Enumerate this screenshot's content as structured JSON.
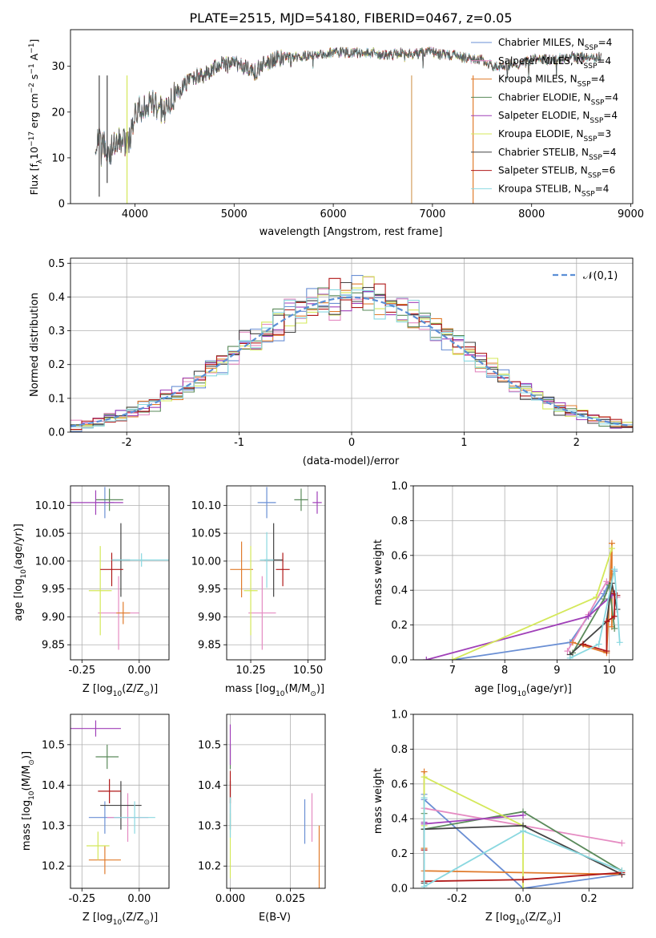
{
  "figure": {
    "title": "PLATE=2515, MJD=54180, FIBERID=0467, z=0.05"
  },
  "chart_data": [
    {
      "id": "spectrum",
      "type": "line",
      "title": "PLATE=2515, MJD=54180, FIBERID=0467, z=0.05",
      "xlabel": "wavelength [Angstrom, rest frame]",
      "ylabel_main": "Flux [f",
      "ylabel_sub": "λ",
      "ylabel_rest": "10",
      "ylabel_exp1": "−17",
      "ylabel_mid": " erg cm",
      "ylabel_exp2": "−2",
      "ylabel_mid2": " s",
      "ylabel_exp3": "−1",
      "ylabel_end": " A",
      "ylabel_exp4": "−1",
      "ylabel_close": "]",
      "xlim": [
        3350,
        9020
      ],
      "ylim": [
        0,
        38
      ],
      "xticks": [
        4000,
        5000,
        6000,
        7000,
        8000,
        9000
      ],
      "yticks": [
        0,
        10,
        20,
        30
      ],
      "legend_position": "right",
      "series": [
        {
          "name": "Chabrier MILES, N",
          "sub": "SSP",
          "count": "=4",
          "color": "#6a8fd4"
        },
        {
          "name": "Salpeter MILES, N",
          "sub": "SSP",
          "count": "=4",
          "color": "#e58bc2"
        },
        {
          "name": "Kroupa MILES, N",
          "sub": "SSP",
          "count": "=4",
          "color": "#e07b2c"
        },
        {
          "name": "Chabrier ELODIE, N",
          "sub": "SSP",
          "count": "=4",
          "color": "#5a8a5a"
        },
        {
          "name": "Salpeter ELODIE, N",
          "sub": "SSP",
          "count": "=4",
          "color": "#a040b8"
        },
        {
          "name": "Kroupa ELODIE, N",
          "sub": "SSP",
          "count": "=3",
          "color": "#d4e85a"
        },
        {
          "name": "Chabrier STELIB, N",
          "sub": "SSP",
          "count": "=4",
          "color": "#444444"
        },
        {
          "name": "Salpeter STELIB, N",
          "sub": "SSP",
          "count": "=6",
          "color": "#b01818"
        },
        {
          "name": "Kroupa STELIB, N",
          "sub": "SSP",
          "count": "=4",
          "color": "#8ad8e0"
        }
      ],
      "envelope": {
        "wavelength": [
          3600,
          3650,
          3700,
          3750,
          3800,
          3850,
          3900,
          3950,
          4000,
          4100,
          4200,
          4300,
          4400,
          4500,
          4600,
          4700,
          4800,
          4900,
          5000,
          5100,
          5200,
          5300,
          5400,
          5500,
          5600,
          5700,
          5800,
          5900,
          6000,
          6100,
          6200,
          6300,
          6400,
          6500,
          6600,
          6700,
          6800,
          6900,
          7000,
          7100,
          7200,
          7300,
          7400,
          7500,
          7600,
          7700,
          7800,
          7900,
          8000,
          8200,
          8400,
          8600,
          8700
        ],
        "flux": [
          12.5,
          14,
          12.5,
          11.5,
          13,
          13.5,
          13.5,
          14.5,
          20,
          21,
          22,
          19.5,
          24,
          26,
          27.5,
          28,
          29.5,
          30.5,
          30.5,
          30,
          28.5,
          30.5,
          31.5,
          32,
          32,
          32,
          32.5,
          32.5,
          33,
          33,
          33,
          33,
          33,
          32.5,
          32.5,
          33,
          32.5,
          33,
          33,
          32.5,
          32.5,
          32,
          31.5,
          31.5,
          30,
          30,
          30.5,
          30.5,
          31.5,
          31.5,
          32,
          32,
          32
        ]
      },
      "spikes": [
        {
          "x": 3920,
          "color": "#d4e85a",
          "ybottom": 0
        },
        {
          "x": 6790,
          "color": "#d4a060",
          "ybottom": 0
        },
        {
          "x": 7410,
          "color": "#e07b2c",
          "ybottom": 0
        },
        {
          "x": 3640,
          "color": "#444444",
          "ybottom": 1.5
        },
        {
          "x": 3720,
          "color": "#444444",
          "ybottom": 4.5
        }
      ]
    },
    {
      "id": "residuals",
      "type": "area",
      "xlabel": "(data-model)/error",
      "ylabel": "Normed distribution",
      "xlim": [
        -2.5,
        2.5
      ],
      "ylim": [
        0,
        0.515
      ],
      "xticks": [
        -2,
        -1,
        0,
        1,
        2
      ],
      "yticks": [
        0.0,
        0.1,
        0.2,
        0.3,
        0.4,
        0.5
      ],
      "grid": true,
      "legend_position": "top-right",
      "legend_label": "𝒩(0,1)",
      "normal_color": "#5b8fd6",
      "bin_width": 0.1,
      "bin_start": -2.5,
      "hist_colors": [
        "#6a8fd4",
        "#e58bc2",
        "#e07b2c",
        "#5a8a5a",
        "#a040b8",
        "#d4e85a",
        "#444444",
        "#b01818",
        "#8ad8e0"
      ]
    },
    {
      "id": "age-vs-Z",
      "type": "scatter",
      "xlabel": "Z [log",
      "xlabel_sub": "10",
      "xlabel_rest": "(Z/Z",
      "xlabel_sub2": "⊙",
      "xlabel_end": ")]",
      "ylabel": "age  [log",
      "ylabel_sub": "10",
      "ylabel_rest": "(age/yr)]",
      "xlim": [
        -0.3,
        0.13
      ],
      "ylim": [
        9.823,
        10.135
      ],
      "xticks": [
        -0.25,
        0.0
      ],
      "yticks": [
        9.85,
        9.9,
        9.95,
        10.0,
        10.05,
        10.1
      ],
      "points": [
        {
          "x": -0.15,
          "xerr": 0.04,
          "y": 10.105,
          "yerr": 0.028,
          "color": "#6a8fd4"
        },
        {
          "x": -0.09,
          "xerr": 0.09,
          "y": 9.907,
          "yerr": 0.066,
          "color": "#e58bc2"
        },
        {
          "x": -0.07,
          "xerr": 0.03,
          "y": 9.907,
          "yerr": 0.02,
          "color": "#e07b2c"
        },
        {
          "x": -0.13,
          "xerr": 0.06,
          "y": 10.11,
          "yerr": 0.02,
          "color": "#5a8a5a"
        },
        {
          "x": -0.19,
          "xerr": 0.12,
          "y": 10.105,
          "yerr": 0.022,
          "color": "#a040b8"
        },
        {
          "x": -0.17,
          "xerr": 0.05,
          "y": 9.947,
          "yerr": 0.08,
          "color": "#d4e85a"
        },
        {
          "x": -0.08,
          "xerr": 0.04,
          "y": 10.002,
          "yerr": 0.066,
          "color": "#444444"
        },
        {
          "x": -0.12,
          "xerr": 0.05,
          "y": 9.985,
          "yerr": 0.03,
          "color": "#b01818"
        },
        {
          "x": 0.01,
          "xerr": 0.13,
          "y": 10.002,
          "yerr": 0.012,
          "color": "#8ad8e0"
        }
      ]
    },
    {
      "id": "age-vs-mass",
      "type": "scatter",
      "xlabel": "mass [log",
      "xlabel_sub": "10",
      "xlabel_rest": "(M/M",
      "xlabel_sub2": "⊙",
      "xlabel_end": ")]",
      "xlim": [
        10.145,
        10.575
      ],
      "ylim": [
        9.823,
        10.135
      ],
      "xticks": [
        10.25,
        10.5
      ],
      "yticks": [
        9.85,
        9.9,
        9.95,
        10.0,
        10.05,
        10.1
      ],
      "points": [
        {
          "x": 10.32,
          "xerr": 0.04,
          "y": 10.105,
          "yerr": 0.028,
          "color": "#6a8fd4"
        },
        {
          "x": 10.3,
          "xerr": 0.06,
          "y": 9.907,
          "yerr": 0.066,
          "color": "#e58bc2"
        },
        {
          "x": 10.21,
          "xerr": 0.05,
          "y": 9.985,
          "yerr": 0.05,
          "color": "#e07b2c"
        },
        {
          "x": 10.47,
          "xerr": 0.03,
          "y": 10.11,
          "yerr": 0.02,
          "color": "#5a8a5a"
        },
        {
          "x": 10.54,
          "xerr": 0.02,
          "y": 10.105,
          "yerr": 0.02,
          "color": "#a040b8"
        },
        {
          "x": 10.25,
          "xerr": 0.03,
          "y": 9.947,
          "yerr": 0.08,
          "color": "#d4e85a"
        },
        {
          "x": 10.35,
          "xerr": 0.04,
          "y": 10.002,
          "yerr": 0.066,
          "color": "#444444"
        },
        {
          "x": 10.39,
          "xerr": 0.03,
          "y": 9.985,
          "yerr": 0.03,
          "color": "#b01818"
        },
        {
          "x": 10.32,
          "xerr": 0.03,
          "y": 10.002,
          "yerr": 0.05,
          "color": "#8ad8e0"
        }
      ]
    },
    {
      "id": "massweight-vs-age",
      "type": "line",
      "xlabel": "age  [log",
      "xlabel_sub": "10",
      "xlabel_rest": "(age/yr)]",
      "ylabel": "mass weight",
      "xlim": [
        6.25,
        10.45
      ],
      "ylim": [
        0,
        1.0
      ],
      "xticks": [
        7,
        8,
        9,
        10
      ],
      "yticks": [
        0.0,
        0.2,
        0.4,
        0.6,
        0.8,
        1.0
      ],
      "grid": true,
      "series": [
        {
          "color": "#6a8fd4",
          "x": [
            7.0,
            9.25,
            9.9,
            10.1
          ],
          "y": [
            0.0,
            0.1,
            0.38,
            0.51
          ]
        },
        {
          "color": "#e58bc2",
          "x": [
            9.2,
            9.6,
            9.95,
            10.15
          ],
          "y": [
            0.05,
            0.26,
            0.45,
            0.36
          ]
        },
        {
          "color": "#e07b2c",
          "x": [
            9.3,
            9.95,
            10.05,
            10.05
          ],
          "y": [
            0.1,
            0.04,
            0.67,
            0.19
          ]
        },
        {
          "color": "#5a8a5a",
          "x": [
            9.3,
            9.9,
            10.0,
            10.1
          ],
          "y": [
            0.04,
            0.35,
            0.43,
            0.18
          ]
        },
        {
          "color": "#a040b8",
          "x": [
            6.5,
            9.6,
            10.05,
            10.1
          ],
          "y": [
            0.0,
            0.25,
            0.37,
            0.38
          ]
        },
        {
          "color": "#d4e85a",
          "x": [
            7.0,
            9.75,
            10.05
          ],
          "y": [
            0.0,
            0.36,
            0.64
          ]
        },
        {
          "color": "#444444",
          "x": [
            9.25,
            9.95,
            10.05,
            10.15
          ],
          "y": [
            0.03,
            0.22,
            0.44,
            0.29
          ]
        },
        {
          "color": "#b01818",
          "x": [
            9.5,
            9.95,
            9.95,
            10.1,
            10.1,
            10.15
          ],
          "y": [
            0.09,
            0.05,
            0.22,
            0.25,
            0.38,
            0.37
          ]
        },
        {
          "color": "#8ad8e0",
          "x": [
            9.25,
            9.8,
            10.1,
            10.2
          ],
          "y": [
            0.01,
            0.09,
            0.52,
            0.1
          ]
        }
      ]
    },
    {
      "id": "mass-vs-Z",
      "type": "scatter",
      "xlabel": "Z [log",
      "xlabel_sub": "10",
      "xlabel_rest": "(Z/Z",
      "xlabel_sub2": "⊙",
      "xlabel_end": ")]",
      "ylabel": "mass [log",
      "ylabel_sub": "10",
      "ylabel_rest": "(M/M",
      "ylabel_sub2": "⊙",
      "ylabel_end": ")]",
      "xlim": [
        -0.3,
        0.13
      ],
      "ylim": [
        10.145,
        10.575
      ],
      "xticks": [
        -0.25,
        0.0
      ],
      "yticks": [
        10.2,
        10.3,
        10.4,
        10.5
      ],
      "points": [
        {
          "x": -0.15,
          "xerr": 0.07,
          "y": 10.32,
          "yerr": 0.04,
          "color": "#6a8fd4"
        },
        {
          "x": -0.05,
          "xerr": 0.09,
          "y": 10.32,
          "yerr": 0.06,
          "color": "#e58bc2"
        },
        {
          "x": -0.15,
          "xerr": 0.07,
          "y": 10.215,
          "yerr": 0.035,
          "color": "#e07b2c"
        },
        {
          "x": -0.14,
          "xerr": 0.05,
          "y": 10.47,
          "yerr": 0.03,
          "color": "#5a8a5a"
        },
        {
          "x": -0.19,
          "xerr": 0.11,
          "y": 10.54,
          "yerr": 0.02,
          "color": "#a040b8"
        },
        {
          "x": -0.18,
          "xerr": 0.05,
          "y": 10.25,
          "yerr": 0.035,
          "color": "#d4e85a"
        },
        {
          "x": -0.08,
          "xerr": 0.09,
          "y": 10.35,
          "yerr": 0.06,
          "color": "#444444"
        },
        {
          "x": -0.13,
          "xerr": 0.05,
          "y": 10.385,
          "yerr": 0.03,
          "color": "#b01818"
        },
        {
          "x": -0.02,
          "xerr": 0.09,
          "y": 10.32,
          "yerr": 0.04,
          "color": "#8ad8e0"
        }
      ]
    },
    {
      "id": "mass-vs-ebv",
      "type": "scatter",
      "xlabel": "E(B-V)",
      "xlim": [
        -0.0015,
        0.0395
      ],
      "ylim": [
        10.145,
        10.575
      ],
      "xticks": [
        0.0,
        0.025
      ],
      "xtick_labels": [
        "0.000",
        "0.025"
      ],
      "yticks": [
        10.2,
        10.3,
        10.4,
        10.5
      ],
      "points": [
        {
          "x": 0.031,
          "y": 10.31,
          "yerr": 0.055,
          "color": "#6a8fd4"
        },
        {
          "x": 0.034,
          "y": 10.32,
          "yerr": 0.06,
          "color": "#e58bc2"
        },
        {
          "x": 0.037,
          "y": 10.215,
          "yerr": 0.085,
          "color": "#e07b2c"
        },
        {
          "x": 0.0,
          "y": 10.47,
          "yerr": 0.03,
          "color": "#5a8a5a"
        },
        {
          "x": 0.0,
          "y": 10.5,
          "yerr": 0.05,
          "color": "#a040b8"
        },
        {
          "x": 0.0,
          "y": 10.25,
          "yerr": 0.08,
          "color": "#d4e85a"
        },
        {
          "x": 0.0,
          "y": 10.35,
          "yerr": 0.06,
          "color": "#444444"
        },
        {
          "x": 0.0,
          "y": 10.395,
          "yerr": 0.04,
          "color": "#b01818"
        },
        {
          "x": 0.0,
          "y": 10.32,
          "yerr": 0.05,
          "color": "#8ad8e0"
        }
      ]
    },
    {
      "id": "massweight-vs-Z",
      "type": "line",
      "xlabel": "Z [log",
      "xlabel_sub": "10",
      "xlabel_rest": "(Z/Z",
      "xlabel_sub2": "⊙",
      "xlabel_end": ")]",
      "ylabel": "mass weight",
      "xlim": [
        -0.333,
        0.333
      ],
      "ylim": [
        0,
        1.0
      ],
      "xticks": [
        -0.2,
        0.0,
        0.2
      ],
      "yticks": [
        0.0,
        0.2,
        0.4,
        0.6,
        0.8,
        1.0
      ],
      "grid": true,
      "series": [
        {
          "color": "#6a8fd4",
          "x": [
            -0.3,
            -0.3,
            0.0,
            0.3
          ],
          "y": [
            0.54,
            0.51,
            0.0,
            0.08
          ]
        },
        {
          "color": "#e58bc2",
          "x": [
            -0.3,
            -0.3,
            0.3
          ],
          "y": [
            0.37,
            0.46,
            0.26
          ]
        },
        {
          "color": "#e07b2c",
          "x": [
            -0.3,
            -0.3,
            -0.3,
            0.3
          ],
          "y": [
            0.67,
            0.23,
            0.1,
            0.08
          ]
        },
        {
          "color": "#5a8a5a",
          "x": [
            -0.3,
            -0.3,
            0.0,
            0.3
          ],
          "y": [
            0.43,
            0.34,
            0.44,
            0.1
          ]
        },
        {
          "color": "#a040b8",
          "x": [
            -0.3,
            -0.3,
            0.0
          ],
          "y": [
            0.38,
            0.37,
            0.42
          ]
        },
        {
          "color": "#d4e85a",
          "x": [
            -0.3,
            -0.3,
            0.0,
            0.0
          ],
          "y": [
            0.36,
            0.64,
            0.36,
            0.0
          ]
        },
        {
          "color": "#444444",
          "x": [
            -0.3,
            -0.3,
            0.0,
            0.3
          ],
          "y": [
            0.03,
            0.34,
            0.36,
            0.08
          ]
        },
        {
          "color": "#b01818",
          "x": [
            -0.3,
            -0.3,
            0.0,
            0.3
          ],
          "y": [
            0.22,
            0.04,
            0.05,
            0.09
          ]
        },
        {
          "color": "#8ad8e0",
          "x": [
            -0.3,
            -0.3,
            0.0,
            0.3
          ],
          "y": [
            0.52,
            0.01,
            0.33,
            0.1
          ]
        }
      ]
    }
  ]
}
